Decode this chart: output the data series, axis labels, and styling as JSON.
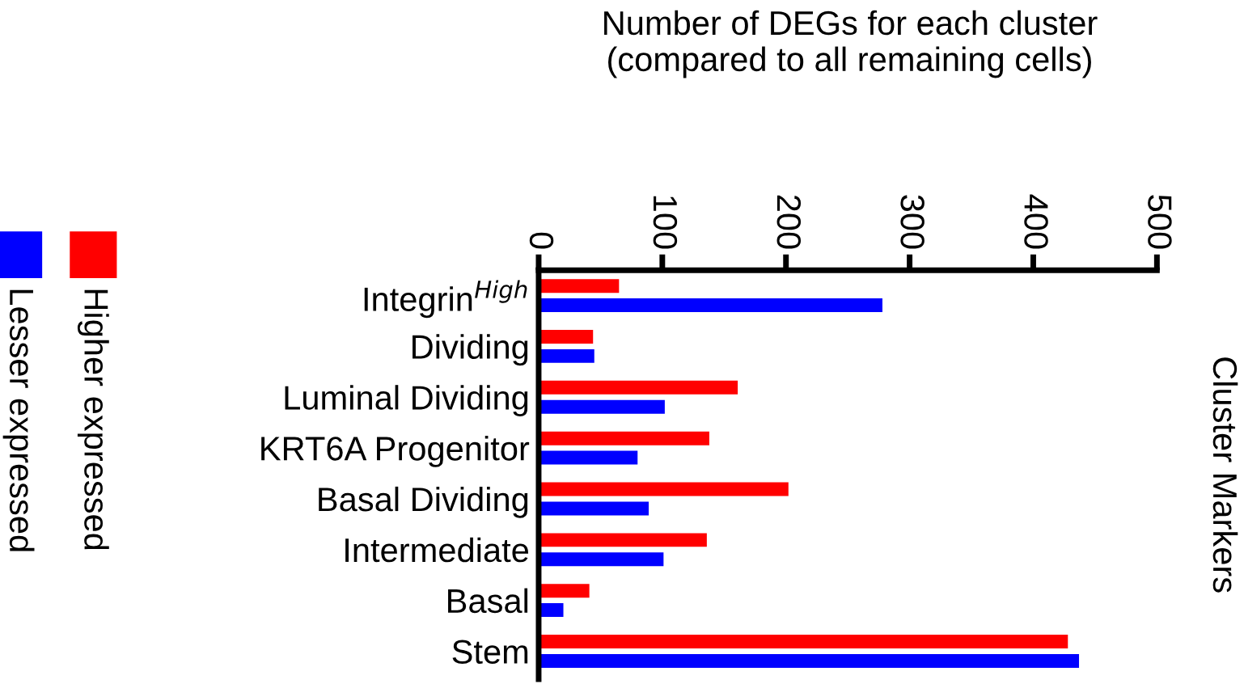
{
  "chart_data": {
    "type": "bar",
    "orientation": "horizontal",
    "title": "Number of DEGs for each cluster\n(compared to all remaining cells)",
    "ylabel": "Cluster Markers",
    "categories": [
      "Integrin$^{High}$",
      "Dividing",
      "Luminal Dividing",
      "KRT6A Progenitor",
      "Basal Dividing",
      "Intermediate",
      "Basal",
      "Stem"
    ],
    "series": [
      {
        "name": "Higher expressed",
        "color": "#ff0000",
        "values": [
          65,
          44,
          161,
          138,
          202,
          136,
          41,
          428
        ]
      },
      {
        "name": "Lesser expressed",
        "color": "#0000ff",
        "values": [
          278,
          45,
          102,
          80,
          89,
          101,
          20,
          437
        ]
      }
    ],
    "xlim": [
      0,
      500
    ],
    "xticks": [
      0,
      100,
      200,
      300,
      400,
      500
    ],
    "grid": false,
    "legend": "left"
  }
}
